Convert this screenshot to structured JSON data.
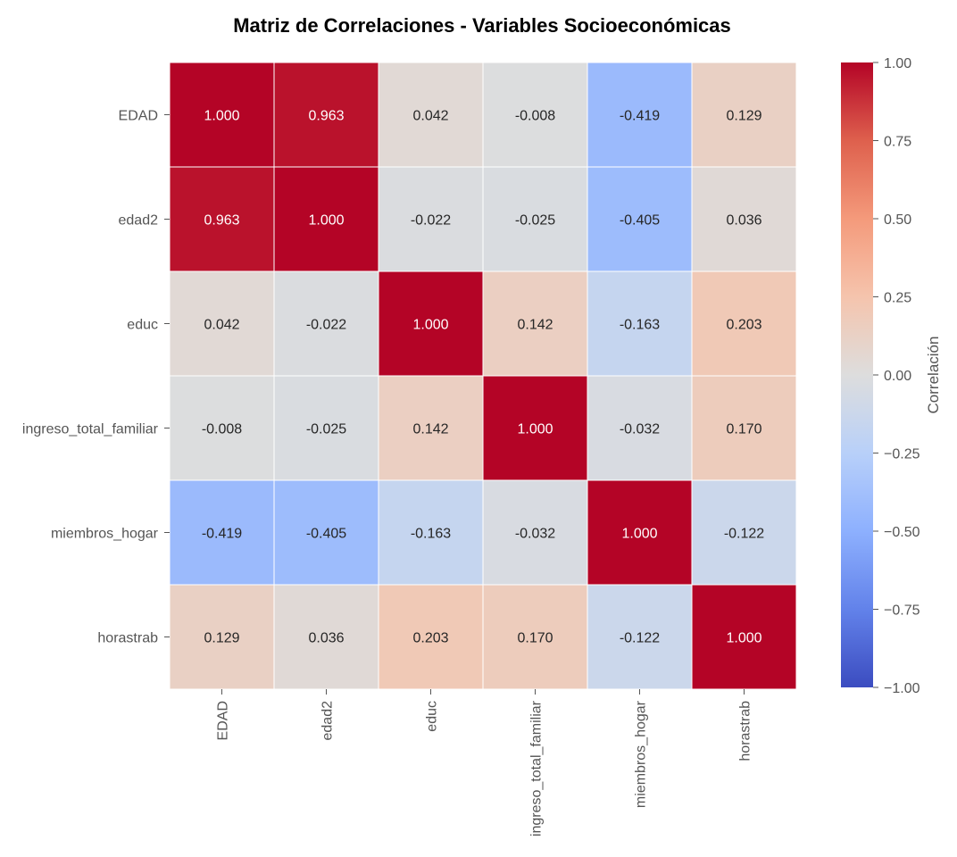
{
  "chart_data": {
    "type": "heatmap",
    "title": "Matriz de Correlaciones - Variables Socioeconómicas",
    "row_labels": [
      "EDAD",
      "edad2",
      "educ",
      "ingreso_total_familiar",
      "miembros_hogar",
      "horastrab"
    ],
    "col_labels": [
      "EDAD",
      "edad2",
      "educ",
      "ingreso_total_familiar",
      "miembros_hogar",
      "horastrab"
    ],
    "values": [
      [
        1.0,
        0.963,
        0.042,
        -0.008,
        -0.419,
        0.129
      ],
      [
        0.963,
        1.0,
        -0.022,
        -0.025,
        -0.405,
        0.036
      ],
      [
        0.042,
        -0.022,
        1.0,
        0.142,
        -0.163,
        0.203
      ],
      [
        -0.008,
        -0.025,
        0.142,
        1.0,
        -0.032,
        0.17
      ],
      [
        -0.419,
        -0.405,
        -0.163,
        -0.032,
        1.0,
        -0.122
      ],
      [
        0.129,
        0.036,
        0.203,
        0.17,
        -0.122,
        1.0
      ]
    ],
    "value_format": "0.000",
    "colormap": "coolwarm",
    "vmin": -1.0,
    "vmax": 1.0,
    "colorbar": {
      "label": "Correlación",
      "ticks": [
        1.0,
        0.75,
        0.5,
        0.25,
        0.0,
        -0.25,
        -0.5,
        -0.75,
        -1.0
      ],
      "tick_labels": [
        "1.00",
        "0.75",
        "0.50",
        "0.25",
        "0.00",
        "−0.25",
        "−0.50",
        "−0.75",
        "−1.00"
      ]
    },
    "colors": {
      "cell_border": "#ffffff",
      "dark_text": "#262626",
      "light_text": "#ffffff",
      "tick_text": "#555555"
    }
  }
}
